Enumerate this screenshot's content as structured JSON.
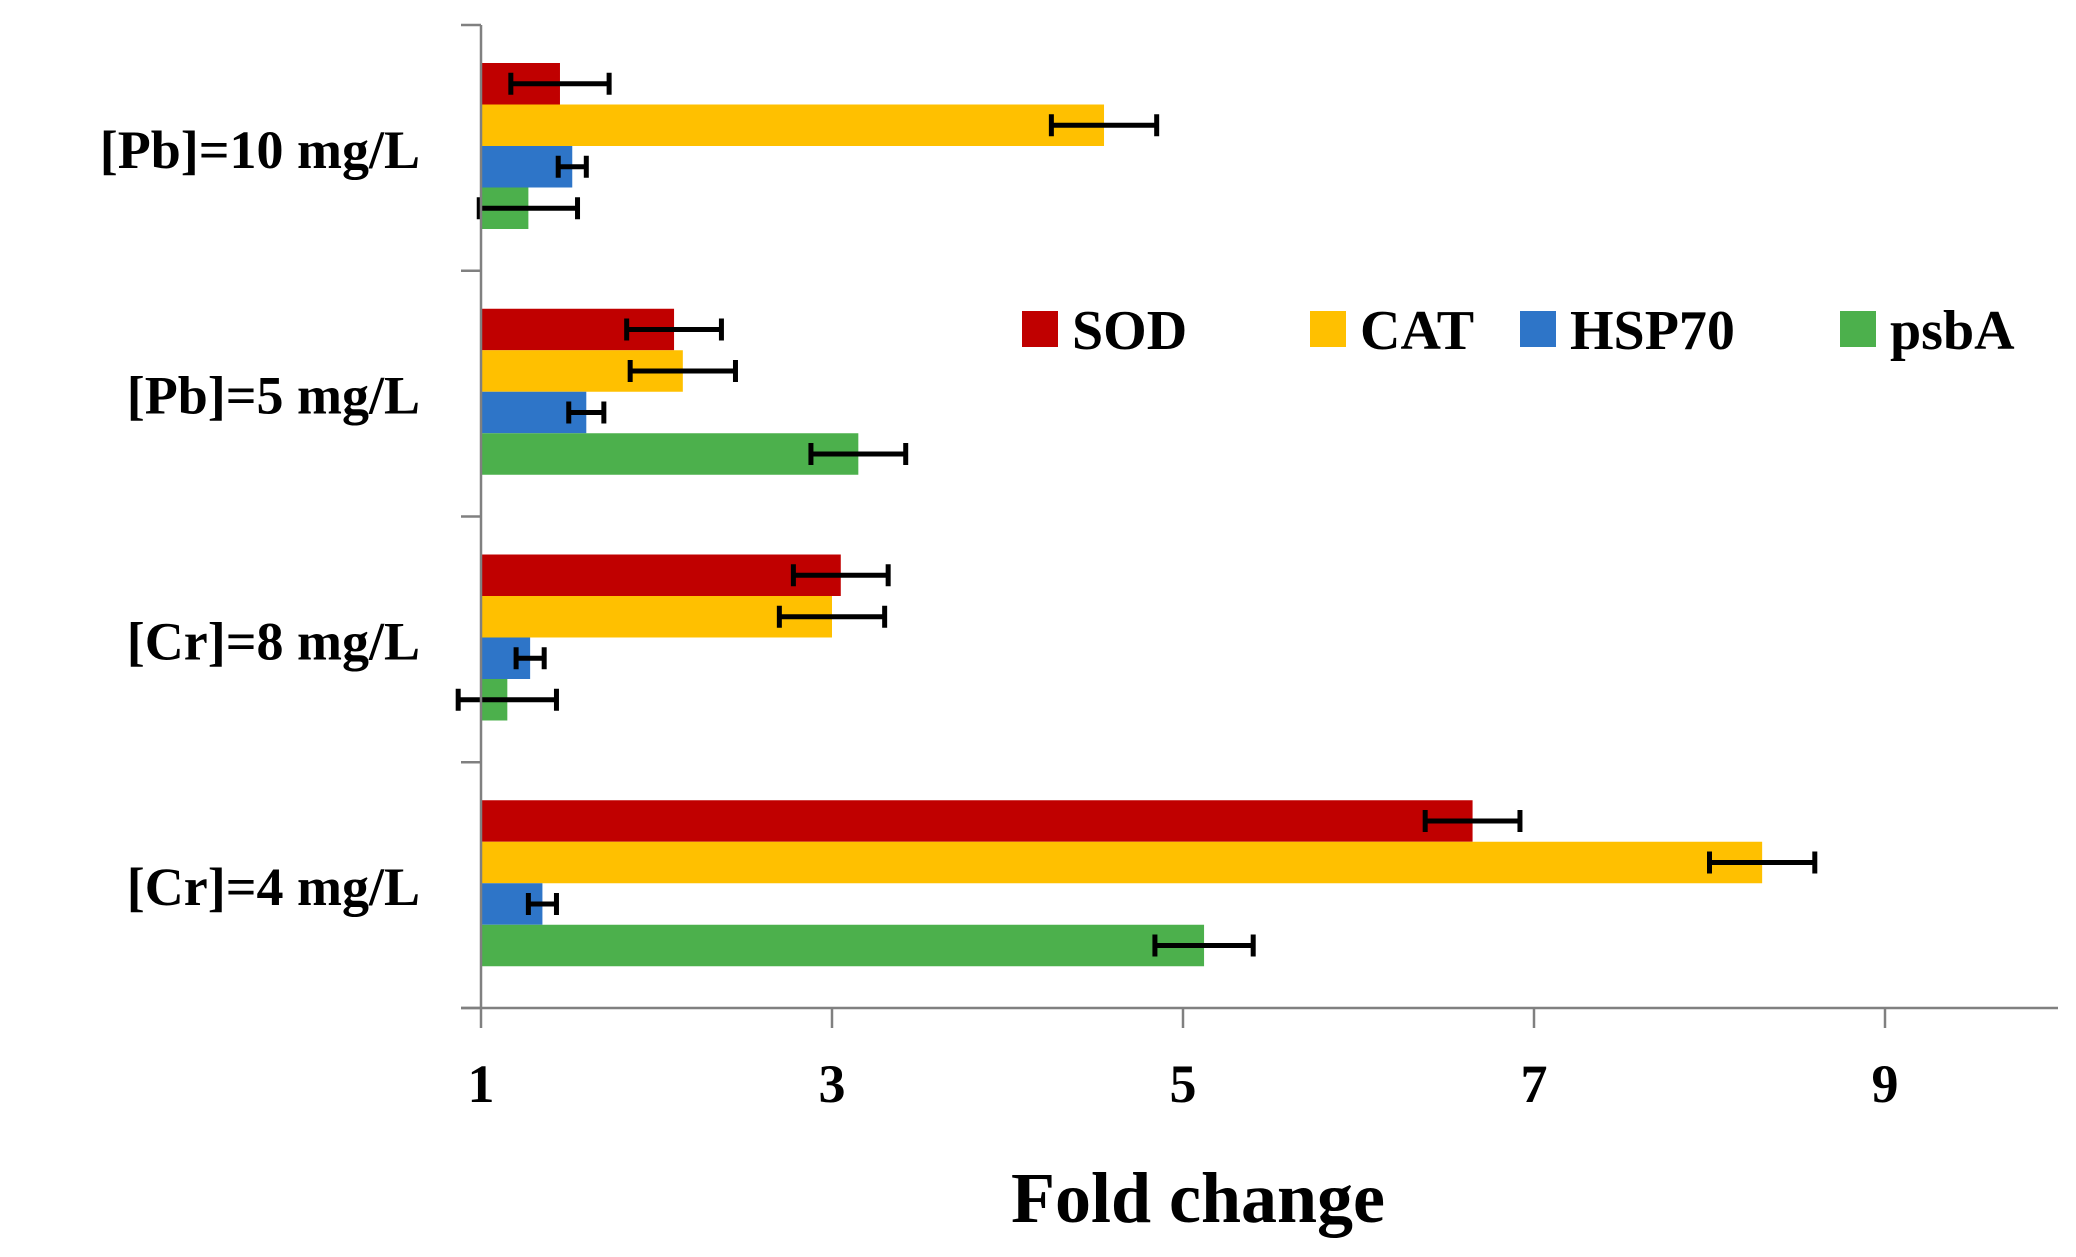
{
  "chart_data": {
    "type": "bar",
    "orientation": "horizontal",
    "title": "",
    "xlabel": "Fold change",
    "ylabel": "",
    "xlim": [
      1,
      10
    ],
    "xticks": [
      1,
      3,
      5,
      7,
      9
    ],
    "categories": [
      "[Pb]=10 mg/L",
      "[Pb]=5 mg/L",
      "[Cr]=8 mg/L",
      "[Cr]=4 mg/L"
    ],
    "series": [
      {
        "name": "SOD",
        "color": "#c00000",
        "values": [
          1.45,
          2.1,
          3.05,
          6.65
        ],
        "errors": [
          0.28,
          0.27,
          0.27,
          0.27
        ]
      },
      {
        "name": "CAT",
        "color": "#ffc000",
        "values": [
          4.55,
          2.15,
          3.0,
          8.3
        ],
        "errors": [
          0.3,
          0.3,
          0.3,
          0.3
        ]
      },
      {
        "name": "HSP70",
        "color": "#2e75c8",
        "values": [
          1.52,
          1.6,
          1.28,
          1.35
        ],
        "errors": [
          0.08,
          0.1,
          0.08,
          0.08
        ]
      },
      {
        "name": "psbA",
        "color": "#4cb04c",
        "values": [
          1.27,
          3.15,
          1.15,
          5.12
        ],
        "errors": [
          0.28,
          0.27,
          0.28,
          0.28
        ]
      }
    ],
    "legend": "inside-right",
    "grid": false
  }
}
